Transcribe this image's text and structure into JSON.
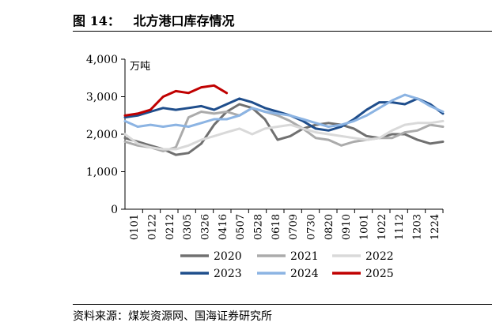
{
  "figure": {
    "title": "图 14：   北方港口库存情况",
    "source": "资料来源：煤炭资源网、国海证券研究所"
  },
  "chart_data": {
    "type": "line",
    "unit_label": "万吨",
    "ylim": [
      0,
      4000
    ],
    "yticks": [
      0,
      1000,
      2000,
      3000,
      4000
    ],
    "ytick_labels": [
      "0",
      "1,000",
      "2,000",
      "3,000",
      "4,000"
    ],
    "xticks": [
      "0101",
      "0122",
      "0212",
      "0305",
      "0326",
      "0416",
      "0507",
      "0528",
      "0618",
      "0709",
      "0730",
      "0820",
      "0910",
      "1001",
      "1022",
      "1112",
      "1203",
      "1224"
    ],
    "x_start": "0101",
    "legend_position": "bottom",
    "grid": false,
    "series": [
      {
        "name": "2020",
        "color": "#707070",
        "values": [
          1900,
          1800,
          1700,
          1600,
          1450,
          1500,
          1750,
          2250,
          2600,
          2800,
          2700,
          2400,
          1850,
          1950,
          2150,
          2250,
          2300,
          2250,
          2150,
          1950,
          1900,
          2000,
          2000,
          1850,
          1750,
          1800
        ]
      },
      {
        "name": "2021",
        "color": "#ababab",
        "values": [
          1800,
          1700,
          1650,
          1550,
          1650,
          2450,
          2600,
          2550,
          2600,
          2500,
          2700,
          2600,
          2500,
          2350,
          2150,
          1900,
          1850,
          1700,
          1800,
          1850,
          1900,
          1900,
          2050,
          2100,
          2250,
          2200
        ]
      },
      {
        "name": "2022",
        "color": "#d9d9d9",
        "values": [
          2000,
          1750,
          1650,
          1600,
          1600,
          1700,
          1850,
          1950,
          2050,
          2150,
          2000,
          2150,
          2200,
          2250,
          2150,
          2050,
          2000,
          1950,
          1900,
          1850,
          1900,
          2100,
          2250,
          2300,
          2300,
          2350
        ]
      },
      {
        "name": "2023",
        "color": "#1f4e8c",
        "values": [
          2450,
          2500,
          2600,
          2700,
          2650,
          2700,
          2750,
          2650,
          2800,
          2950,
          2850,
          2700,
          2600,
          2500,
          2350,
          2150,
          2100,
          2200,
          2400,
          2650,
          2850,
          2850,
          2800,
          2950,
          2800,
          2550
        ]
      },
      {
        "name": "2024",
        "color": "#8cb4e3",
        "values": [
          2350,
          2200,
          2250,
          2200,
          2250,
          2200,
          2300,
          2400,
          2400,
          2500,
          2700,
          2600,
          2550,
          2500,
          2400,
          2300,
          2200,
          2250,
          2350,
          2500,
          2700,
          2900,
          3050,
          2950,
          2750,
          2600
        ]
      },
      {
        "name": "2025",
        "color": "#c00000",
        "values": [
          2500,
          2550,
          2650,
          3000,
          3150,
          3100,
          3250,
          3300,
          3100
        ]
      }
    ]
  }
}
